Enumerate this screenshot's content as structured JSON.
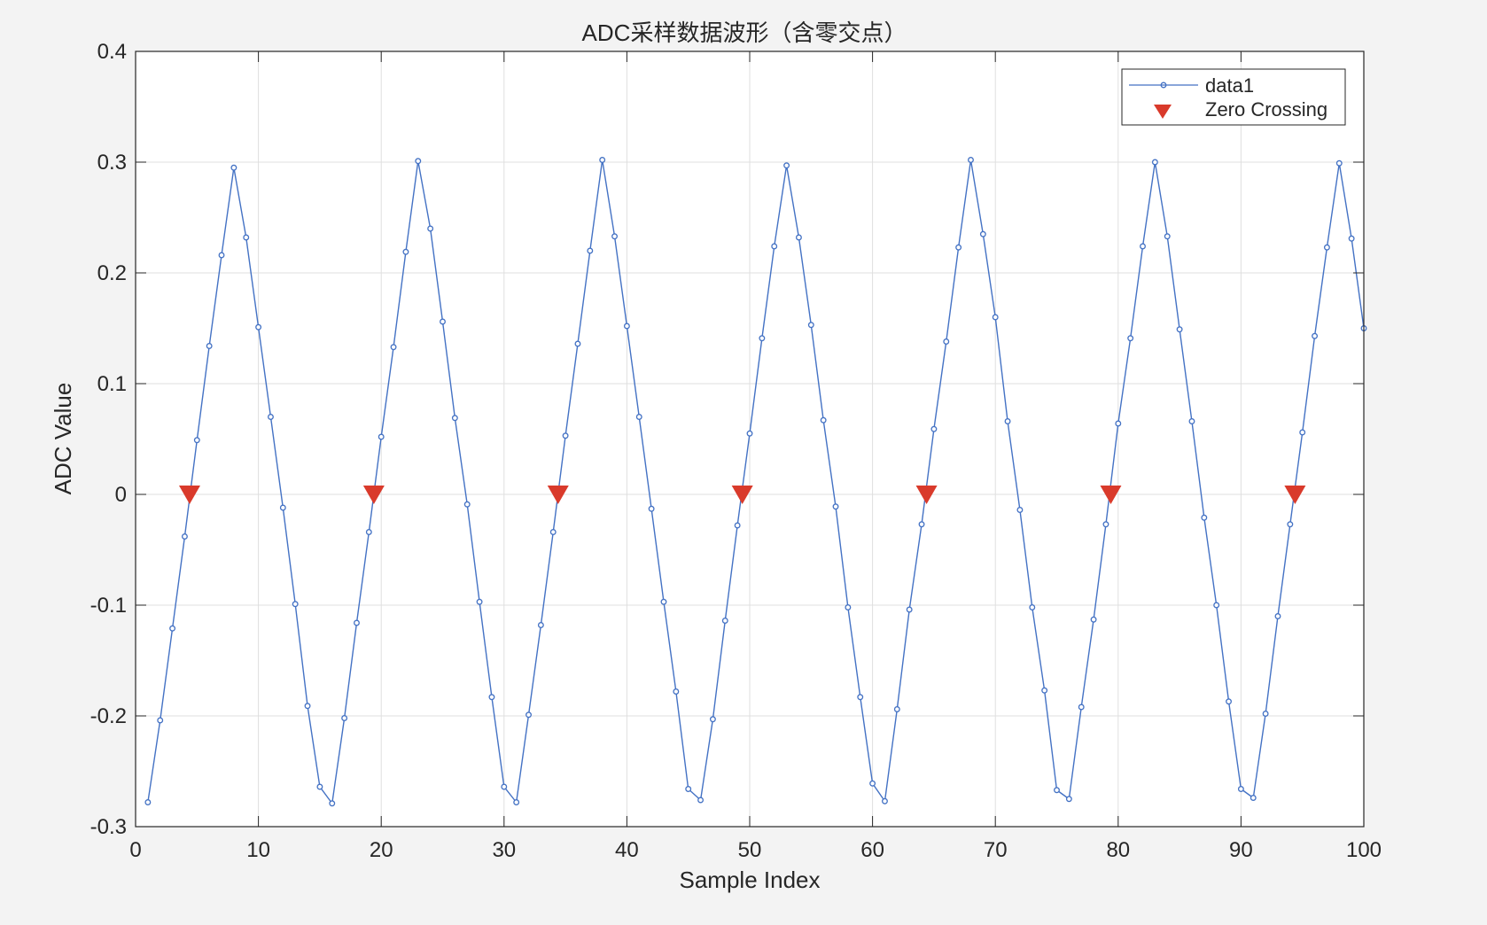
{
  "chart_data": {
    "type": "line",
    "title": "ADC采样数据波形（含零交点）",
    "xlabel": "Sample Index",
    "ylabel": "ADC Value",
    "xlim": [
      0,
      100
    ],
    "ylim": [
      -0.3,
      0.4
    ],
    "xticks": [
      0,
      10,
      20,
      30,
      40,
      50,
      60,
      70,
      80,
      90,
      100
    ],
    "yticks": [
      -0.3,
      -0.2,
      -0.1,
      0,
      0.1,
      0.2,
      0.3,
      0.4
    ],
    "xtick_labels": [
      "0",
      "10",
      "20",
      "30",
      "40",
      "50",
      "60",
      "70",
      "80",
      "90",
      "100"
    ],
    "ytick_labels": [
      "-0.3",
      "-0.2",
      "-0.1",
      "0",
      "0.1",
      "0.2",
      "0.3",
      "0.4"
    ],
    "grid": true,
    "legend_position": "top-right",
    "series": [
      {
        "name": "data1",
        "color": "#4472c4",
        "marker": "circle",
        "x": [
          1,
          2,
          3,
          4,
          5,
          6,
          7,
          8,
          9,
          10,
          11,
          12,
          13,
          14,
          15,
          16,
          17,
          18,
          19,
          20,
          21,
          22,
          23,
          24,
          25,
          26,
          27,
          28,
          29,
          30,
          31,
          32,
          33,
          34,
          35,
          36,
          37,
          38,
          39,
          40,
          41,
          42,
          43,
          44,
          45,
          46,
          47,
          48,
          49,
          50,
          51,
          52,
          53,
          54,
          55,
          56,
          57,
          58,
          59,
          60,
          61,
          62,
          63,
          64,
          65,
          66,
          67,
          68,
          69,
          70,
          71,
          72,
          73,
          74,
          75,
          76,
          77,
          78,
          79,
          80,
          81,
          82,
          83,
          84,
          85,
          86,
          87,
          88,
          89,
          90,
          91,
          92,
          93,
          94,
          95,
          96,
          97,
          98,
          99,
          100
        ],
        "y": [
          -0.278,
          -0.204,
          -0.121,
          -0.038,
          0.049,
          0.134,
          0.216,
          0.295,
          0.232,
          0.151,
          0.07,
          -0.012,
          -0.099,
          -0.191,
          -0.264,
          -0.279,
          -0.202,
          -0.116,
          -0.034,
          0.052,
          0.133,
          0.219,
          0.301,
          0.24,
          0.156,
          0.069,
          -0.009,
          -0.097,
          -0.183,
          -0.264,
          -0.278,
          -0.199,
          -0.118,
          -0.034,
          0.053,
          0.136,
          0.22,
          0.302,
          0.233,
          0.152,
          0.07,
          -0.013,
          -0.097,
          -0.178,
          -0.266,
          -0.276,
          -0.203,
          -0.114,
          -0.028,
          0.055,
          0.141,
          0.224,
          0.297,
          0.232,
          0.153,
          0.067,
          -0.011,
          -0.102,
          -0.183,
          -0.261,
          -0.277,
          -0.194,
          -0.104,
          -0.027,
          0.059,
          0.138,
          0.223,
          0.302,
          0.235,
          0.16,
          0.066,
          -0.014,
          -0.102,
          -0.177,
          -0.267,
          -0.275,
          -0.192,
          -0.113,
          -0.027,
          0.064,
          0.141,
          0.224,
          0.3,
          0.233,
          0.149,
          0.066,
          -0.021,
          -0.1,
          -0.187,
          -0.266,
          -0.274,
          -0.198,
          -0.11,
          -0.027,
          0.056,
          0.143,
          0.223,
          0.299,
          0.231,
          0.15
        ]
      },
      {
        "name": "Zero Crossing",
        "color": "#d93a2b",
        "marker": "triangle-down",
        "x": [
          4.4,
          19.4,
          34.4,
          49.4,
          64.4,
          79.4,
          94.4
        ],
        "y": [
          0,
          0,
          0,
          0,
          0,
          0,
          0
        ]
      }
    ]
  }
}
